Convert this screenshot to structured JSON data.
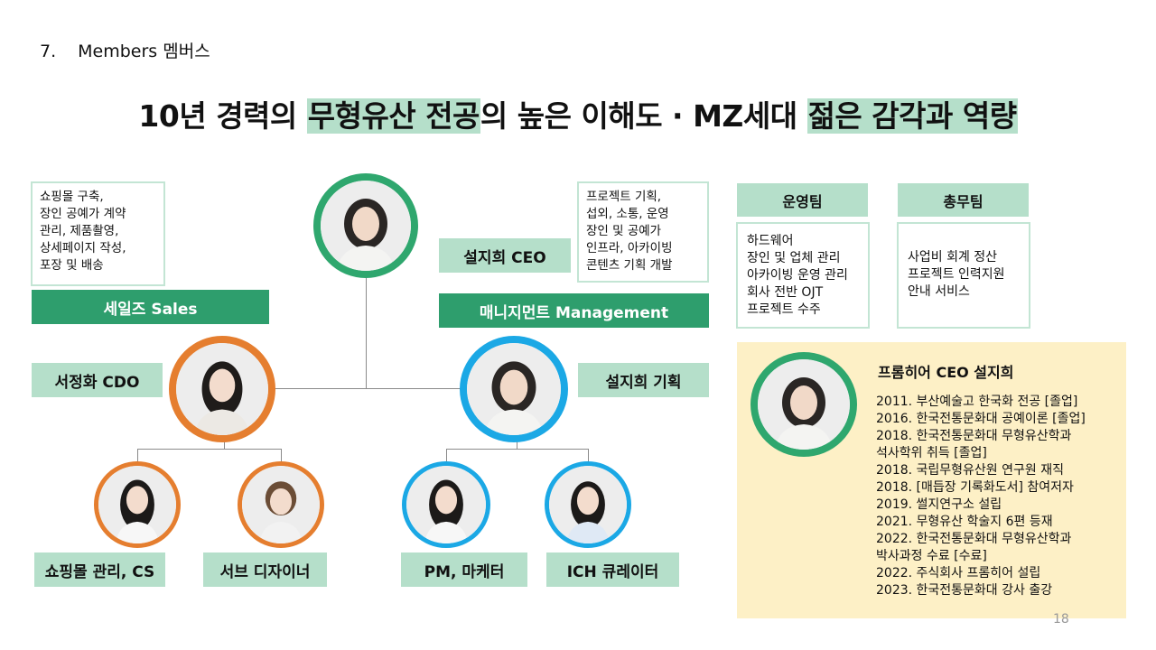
{
  "section": {
    "number": "7.",
    "title": "Members 멤버스"
  },
  "headline": {
    "part1": "10년 경력의 ",
    "highlight1": "무형유산 전공",
    "part2": "의 높은 이해도 · MZ세대 ",
    "highlight2": "젊은 감각과 역량"
  },
  "sales": {
    "description": "쇼핑몰 구축,\n장인 공예가 계약\n관리, 제품촬영,\n상세페이지 작성,\n포장 및 배송",
    "bar_label": "세일즈 Sales"
  },
  "management": {
    "description": "프로젝트 기획,\n섭외, 소통, 운영\n장인 및 공예가\n인프라, 아카이빙\n콘텐츠 기획 개발",
    "bar_label": "매니지먼트 Management"
  },
  "ceo": {
    "label": "설지희 CEO"
  },
  "members": {
    "cdo": "서정화 CDO",
    "planning": "설지희 기획",
    "shop": "쇼핑몰 관리, CS",
    "sub_designer": "서브 디자이너",
    "pm": "PM, 마케터",
    "ich": "ICH 큐레이터"
  },
  "teams": [
    {
      "name": "운영팀",
      "duties": "하드웨어\n장인 및 업체 관리\n아카이빙 운영 관리\n회사 전반 OJT\n프로젝트 수주"
    },
    {
      "name": "총무팀",
      "duties": "사업비 회계 정산\n프로젝트 인력지원\n안내 서비스"
    }
  ],
  "profile": {
    "title": "프롬히어 CEO 설지희",
    "history": [
      "2011. 부산예술고 한국화 전공 [졸업]",
      "2016. 한국전통문화대 공예이론 [졸업]",
      "2018. 한국전통문화대 무형유산학과",
      "석사학위 취득 [졸업]",
      "2018. 국립무형유산원 연구원 재직",
      "2018. [매듭장 기록화도서] 참여저자",
      "2019. 썰지연구소 설립",
      "2021. 무형유산 학술지 6편 등재",
      "2022. 한국전통문화대 무형유산학과",
      "박사과정 수료 [수료]",
      "2022. 주식회사 프롬히어 설립",
      "2023. 한국전통문화대 강사 출강"
    ]
  },
  "page_number": "18",
  "colors": {
    "green": "#2fa76e",
    "mint": "#b5dfca",
    "orange": "#e57e2f",
    "blue": "#1ba8e5",
    "cream": "#fdf0c6"
  },
  "icons": {
    "portrait": "person-portrait-icon"
  }
}
